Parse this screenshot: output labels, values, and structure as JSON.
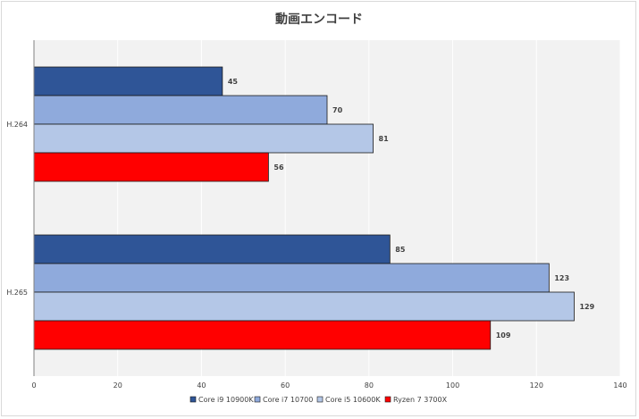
{
  "chart_data": {
    "type": "bar",
    "orientation": "horizontal",
    "title": "動画エンコード",
    "categories": [
      "H.264",
      "H.265"
    ],
    "series": [
      {
        "name": "Core i9 10900K",
        "color": "#2f5597",
        "values": [
          45,
          85
        ]
      },
      {
        "name": "Core i7 10700",
        "color": "#8faadc",
        "values": [
          70,
          123
        ]
      },
      {
        "name": "Core i5 10600K",
        "color": "#b4c7e7",
        "values": [
          81,
          129
        ]
      },
      {
        "name": "Ryzen 7 3700X",
        "color": "#ff0000",
        "values": [
          56,
          109
        ]
      }
    ],
    "xlim": [
      0,
      140
    ],
    "xticks": [
      0,
      20,
      40,
      60,
      80,
      100,
      120,
      140
    ],
    "grid": true,
    "legend": "bottom",
    "plot_background": "#f2f2f2"
  }
}
